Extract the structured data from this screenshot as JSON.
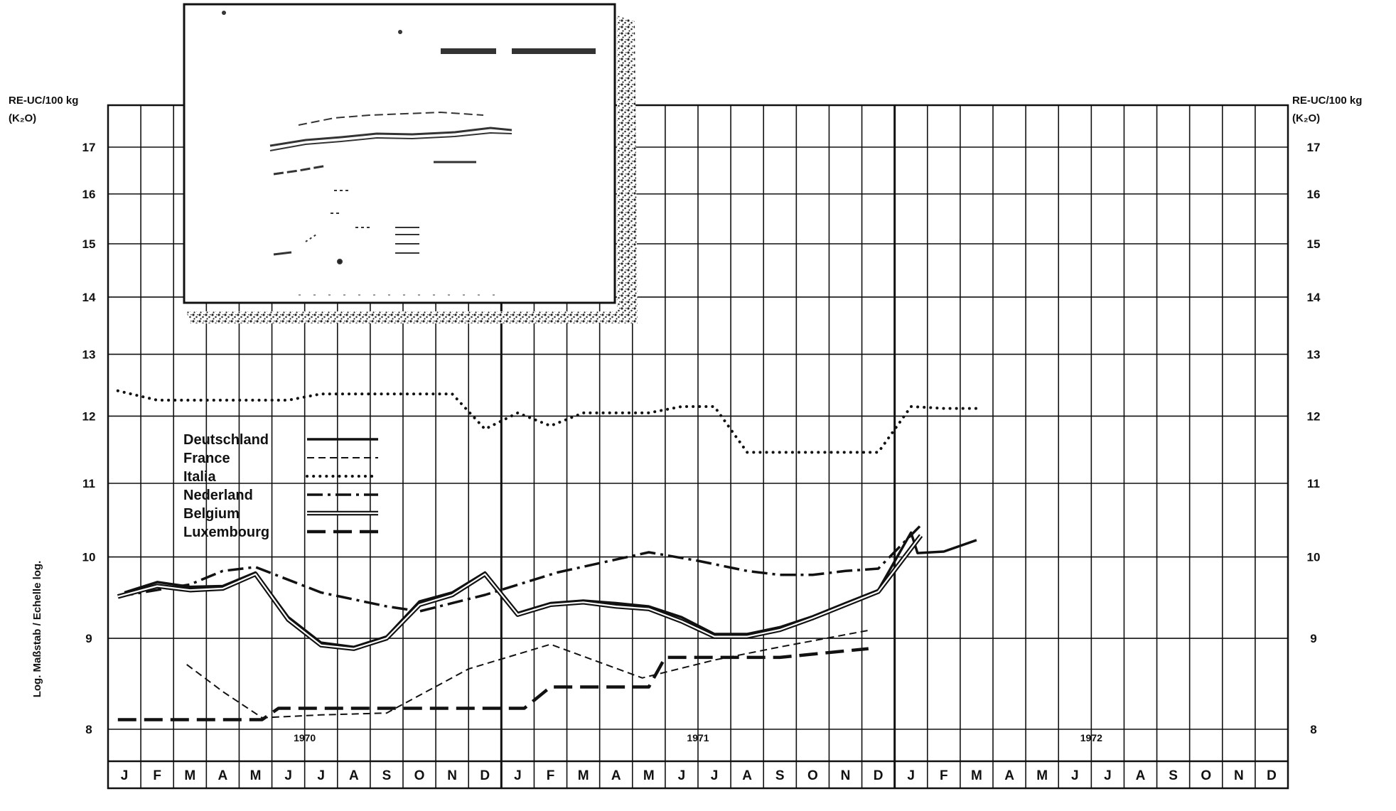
{
  "chart_data": {
    "type": "line",
    "scale": "log",
    "y_label_left": "RE-UC/100 kg",
    "y_label_left_unit": "(K₂O)",
    "y_label_right": "RE-UC/100 kg",
    "y_label_right_unit": "(K₂O)",
    "y_axis_title": "Log. Maßstab   /   Echelle log.",
    "y_ticks": [
      8,
      9,
      10,
      11,
      12,
      13,
      14,
      15,
      16,
      17
    ],
    "years": [
      "1970",
      "1971",
      "1972"
    ],
    "months": [
      "J",
      "F",
      "M",
      "A",
      "M",
      "J",
      "J",
      "A",
      "S",
      "O",
      "N",
      "D"
    ],
    "grid": true,
    "legend_position": "center-left",
    "series": [
      {
        "name": "Deutschland",
        "style": "solid",
        "points": [
          [
            0,
            9.55
          ],
          [
            1,
            9.68
          ],
          [
            2,
            9.62
          ],
          [
            3,
            9.63
          ],
          [
            4,
            9.8
          ],
          [
            5,
            9.25
          ],
          [
            6,
            8.95
          ],
          [
            7,
            8.9
          ],
          [
            8,
            9.02
          ],
          [
            9,
            9.44
          ],
          [
            10,
            9.55
          ],
          [
            11,
            9.8
          ],
          [
            12,
            9.3
          ],
          [
            13,
            9.42
          ],
          [
            14,
            9.45
          ],
          [
            15,
            9.42
          ],
          [
            16,
            9.38
          ],
          [
            17,
            9.25
          ],
          [
            18,
            9.05
          ],
          [
            19,
            9.05
          ],
          [
            20,
            9.13
          ],
          [
            21,
            9.26
          ],
          [
            22,
            9.42
          ],
          [
            23,
            9.58
          ],
          [
            24,
            10.32
          ],
          [
            24.2,
            10.05
          ],
          [
            25,
            10.07
          ],
          [
            26,
            10.22
          ]
        ]
      },
      {
        "name": "France",
        "style": "dashed",
        "points": [
          [
            1.9,
            8.7
          ],
          [
            3,
            8.4
          ],
          [
            4.2,
            8.12
          ],
          [
            6,
            8.15
          ],
          [
            8,
            8.17
          ],
          [
            10.5,
            8.65
          ],
          [
            13,
            8.93
          ],
          [
            15.8,
            8.55
          ],
          [
            18,
            8.75
          ],
          [
            20,
            8.9
          ],
          [
            22.8,
            9.1
          ]
        ]
      },
      {
        "name": "Italia",
        "style": "dotted",
        "points": [
          [
            -0.2,
            12.4
          ],
          [
            1,
            12.25
          ],
          [
            2,
            12.25
          ],
          [
            3,
            12.25
          ],
          [
            4,
            12.25
          ],
          [
            5,
            12.25
          ],
          [
            6,
            12.35
          ],
          [
            7,
            12.35
          ],
          [
            8,
            12.35
          ],
          [
            9,
            12.35
          ],
          [
            10,
            12.35
          ],
          [
            11,
            11.8
          ],
          [
            12,
            12.05
          ],
          [
            13,
            11.85
          ],
          [
            14,
            12.05
          ],
          [
            15,
            12.05
          ],
          [
            16,
            12.05
          ],
          [
            17,
            12.15
          ],
          [
            18,
            12.15
          ],
          [
            19,
            11.45
          ],
          [
            20,
            11.45
          ],
          [
            21,
            11.45
          ],
          [
            22,
            11.45
          ],
          [
            23,
            11.45
          ],
          [
            24,
            12.15
          ],
          [
            25,
            12.12
          ],
          [
            26,
            12.12
          ]
        ]
      },
      {
        "name": "Nederland",
        "style": "dashdot",
        "points": [
          [
            -0.2,
            9.5
          ],
          [
            2,
            9.65
          ],
          [
            3,
            9.82
          ],
          [
            4,
            9.87
          ],
          [
            6,
            9.55
          ],
          [
            8,
            9.38
          ],
          [
            9,
            9.32
          ],
          [
            11,
            9.52
          ],
          [
            13.2,
            9.8
          ],
          [
            16,
            10.06
          ],
          [
            17.5,
            9.95
          ],
          [
            19,
            9.82
          ],
          [
            20,
            9.77
          ],
          [
            21,
            9.77
          ],
          [
            22,
            9.82
          ],
          [
            23,
            9.85
          ],
          [
            24.3,
            10.42
          ]
        ]
      },
      {
        "name": "Belgium",
        "style": "double",
        "points": [
          [
            -0.2,
            9.5
          ],
          [
            1,
            9.63
          ],
          [
            2,
            9.58
          ],
          [
            3,
            9.6
          ],
          [
            4,
            9.78
          ],
          [
            5,
            9.22
          ],
          [
            6,
            8.92
          ],
          [
            7,
            8.88
          ],
          [
            8,
            9.0
          ],
          [
            9,
            9.4
          ],
          [
            10,
            9.52
          ],
          [
            11,
            9.78
          ],
          [
            12,
            9.28
          ],
          [
            13,
            9.4
          ],
          [
            14,
            9.43
          ],
          [
            15,
            9.38
          ],
          [
            16,
            9.35
          ],
          [
            17,
            9.2
          ],
          [
            18,
            9.02
          ],
          [
            19,
            9.02
          ],
          [
            20,
            9.1
          ],
          [
            21,
            9.24
          ],
          [
            22,
            9.4
          ],
          [
            23,
            9.56
          ],
          [
            24.3,
            10.28
          ]
        ]
      },
      {
        "name": "Luxembourg",
        "style": "longdash",
        "points": [
          [
            -0.2,
            8.1
          ],
          [
            4.2,
            8.1
          ],
          [
            4.7,
            8.22
          ],
          [
            12.2,
            8.22
          ],
          [
            13,
            8.45
          ],
          [
            16,
            8.45
          ],
          [
            16.5,
            8.78
          ],
          [
            20,
            8.78
          ],
          [
            22.7,
            8.88
          ]
        ]
      }
    ]
  }
}
